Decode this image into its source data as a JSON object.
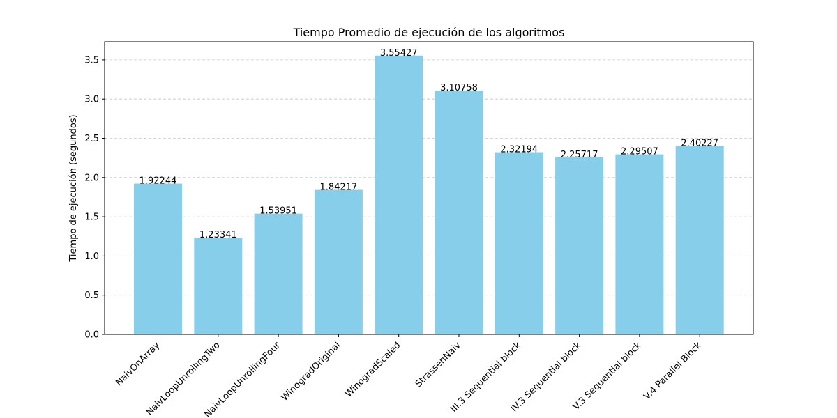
{
  "chart_data": {
    "type": "bar",
    "title": "Tiempo Promedio de ejecución de los algoritmos",
    "xlabel": "",
    "ylabel": "Tiempo de ejecución (segundos)",
    "categories": [
      "NaivOnArray",
      "NaivLoopUnrollingTwo",
      "NaivLoopUnrollingFour",
      "WinogradOriginal",
      "WinogradScaled",
      "StrassenNaiv",
      "III.3 Sequential block",
      "IV.3 Sequential block",
      "V.3 Sequential block",
      "V.4 Parallel Block"
    ],
    "values": [
      1.92244,
      1.23341,
      1.53951,
      1.84217,
      3.55427,
      3.10758,
      2.32194,
      2.25717,
      2.29507,
      2.40227
    ],
    "value_labels": [
      "1.92244",
      "1.23341",
      "1.53951",
      "1.84217",
      "3.55427",
      "3.10758",
      "2.32194",
      "2.25717",
      "2.29507",
      "2.40227"
    ],
    "ylim": [
      0,
      3.73
    ],
    "yticks": [
      0.0,
      0.5,
      1.0,
      1.5,
      2.0,
      2.5,
      3.0,
      3.5
    ],
    "ytick_labels": [
      "0.0",
      "0.5",
      "1.0",
      "1.5",
      "2.0",
      "2.5",
      "3.0",
      "3.5"
    ],
    "grid": "y-dashed",
    "bar_color": "#87ceeb",
    "grid_color": "#c8c8c8"
  }
}
